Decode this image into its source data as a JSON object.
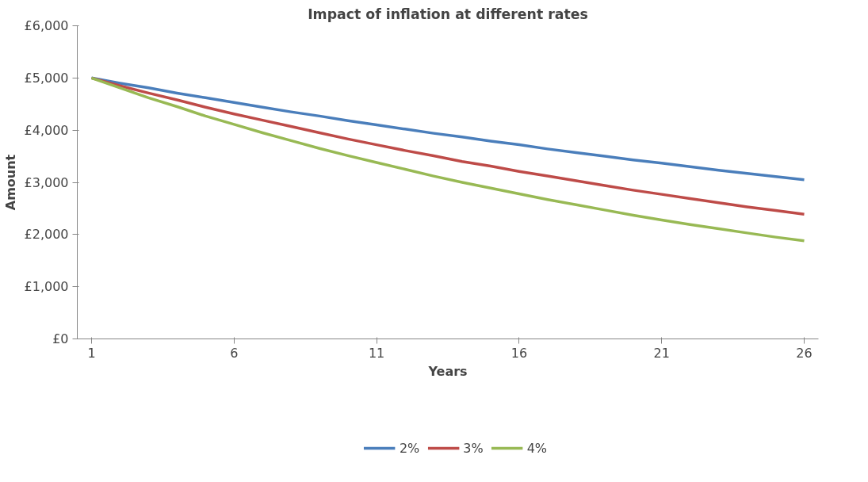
{
  "chart_data": {
    "type": "line",
    "title": "Impact of inflation at different rates",
    "xlabel": "Years",
    "ylabel": "Amount",
    "x": [
      1,
      2,
      3,
      4,
      5,
      6,
      7,
      8,
      9,
      10,
      11,
      12,
      13,
      14,
      15,
      16,
      17,
      18,
      19,
      20,
      21,
      22,
      23,
      24,
      25,
      26
    ],
    "series": [
      {
        "name": "2%",
        "color": "#4a7ebb",
        "values": [
          5000,
          4900,
          4810,
          4710,
          4620,
          4530,
          4440,
          4350,
          4270,
          4180,
          4100,
          4020,
          3940,
          3870,
          3790,
          3720,
          3640,
          3570,
          3500,
          3430,
          3370,
          3300,
          3230,
          3170,
          3110,
          3050
        ]
      },
      {
        "name": "3%",
        "color": "#be4b48",
        "values": [
          5000,
          4850,
          4710,
          4580,
          4440,
          4310,
          4190,
          4070,
          3950,
          3830,
          3720,
          3610,
          3510,
          3400,
          3310,
          3210,
          3120,
          3030,
          2940,
          2850,
          2770,
          2690,
          2610,
          2530,
          2460,
          2390
        ]
      },
      {
        "name": "4%",
        "color": "#98b954",
        "values": [
          5000,
          4810,
          4620,
          4450,
          4270,
          4110,
          3950,
          3800,
          3650,
          3510,
          3380,
          3250,
          3120,
          3000,
          2890,
          2780,
          2670,
          2570,
          2470,
          2370,
          2280,
          2190,
          2110,
          2030,
          1950,
          1880
        ]
      }
    ],
    "xlim": [
      0.5,
      26.5
    ],
    "xticks": [
      1,
      6,
      11,
      16,
      21,
      26
    ],
    "ylim": [
      0,
      6000
    ],
    "yticks": [
      {
        "value": 0,
        "label": "£0"
      },
      {
        "value": 1000,
        "label": "£1,000"
      },
      {
        "value": 2000,
        "label": "£2,000"
      },
      {
        "value": 3000,
        "label": "£3,000"
      },
      {
        "value": 4000,
        "label": "£4,000"
      },
      {
        "value": 5000,
        "label": "£5,000"
      },
      {
        "value": 6000,
        "label": "£6,000"
      }
    ],
    "grid": false,
    "legend": "bottom",
    "marker": "none",
    "line_style": "solid"
  }
}
